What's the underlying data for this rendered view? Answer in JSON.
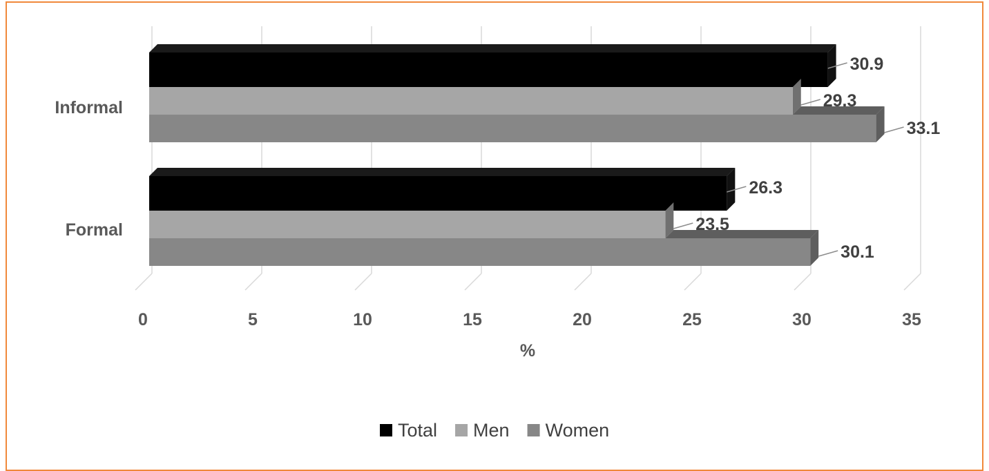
{
  "chart_data": {
    "type": "bar",
    "orientation": "horizontal",
    "categories": [
      "Informal",
      "Formal"
    ],
    "series": [
      {
        "name": "Total",
        "values": [
          30.9,
          26.3
        ],
        "color": "#000000"
      },
      {
        "name": "Men",
        "values": [
          29.3,
          23.5
        ],
        "color": "#a6a6a6"
      },
      {
        "name": "Women",
        "values": [
          33.1,
          30.1
        ],
        "color": "#878787"
      }
    ],
    "xlabel": "%",
    "xlim": [
      0,
      35
    ],
    "xticks": [
      "0",
      "5",
      "10",
      "15",
      "20",
      "25",
      "30",
      "35"
    ],
    "grid": true,
    "legend": "bottom",
    "style": "3d"
  }
}
